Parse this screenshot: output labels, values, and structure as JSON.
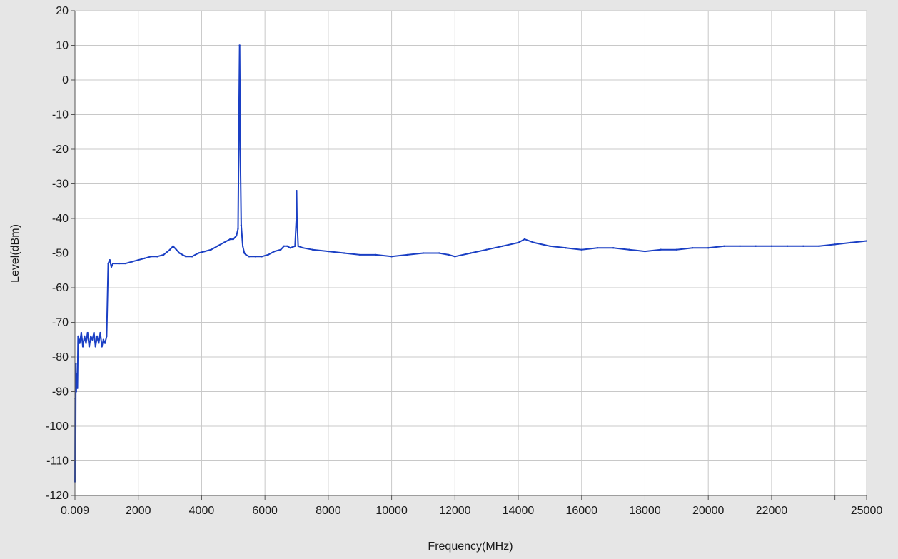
{
  "chart_data": {
    "type": "line",
    "xlabel": "Frequency(MHz)",
    "ylabel": "Level(dBm)",
    "xlim": [
      0,
      25000
    ],
    "ylim": [
      -120,
      20
    ],
    "x_ticks": [
      {
        "value": 0,
        "label": "0.009"
      },
      {
        "value": 2000,
        "label": "2000"
      },
      {
        "value": 4000,
        "label": "4000"
      },
      {
        "value": 6000,
        "label": "6000"
      },
      {
        "value": 8000,
        "label": "8000"
      },
      {
        "value": 10000,
        "label": "10000"
      },
      {
        "value": 12000,
        "label": "12000"
      },
      {
        "value": 14000,
        "label": "14000"
      },
      {
        "value": 16000,
        "label": "16000"
      },
      {
        "value": 18000,
        "label": "18000"
      },
      {
        "value": 20000,
        "label": "20000"
      },
      {
        "value": 22000,
        "label": "22000"
      },
      {
        "value": 25000,
        "label": "25000"
      }
    ],
    "x_grid": [
      0,
      2000,
      4000,
      6000,
      8000,
      10000,
      12000,
      14000,
      16000,
      18000,
      20000,
      22000,
      24000,
      25000
    ],
    "y_ticks": [
      20,
      10,
      0,
      -10,
      -20,
      -30,
      -40,
      -50,
      -60,
      -70,
      -80,
      -90,
      -100,
      -110,
      -120
    ],
    "grid": true,
    "colors": {
      "series": "#1a3fc4",
      "grid": "#c8c8c8",
      "plot_bg": "#ffffff",
      "page_bg": "#e6e6e6",
      "axis": "#555555"
    },
    "series": [
      {
        "x": [
          0,
          10,
          20,
          30,
          40,
          60,
          80,
          100,
          150,
          200,
          250,
          300,
          350,
          400,
          450,
          500,
          550,
          600,
          650,
          700,
          750,
          800,
          850,
          900,
          950,
          1000,
          1050,
          1100,
          1150,
          1200,
          1300,
          1400,
          1600,
          1800,
          2000,
          2200,
          2400,
          2600,
          2800,
          3000,
          3100,
          3200,
          3300,
          3400,
          3500,
          3700,
          3900,
          4100,
          4300,
          4500,
          4700,
          4900,
          5000,
          5100,
          5150,
          5180,
          5200,
          5220,
          5250,
          5300,
          5350,
          5400,
          5500,
          5700,
          5900,
          6100,
          6300,
          6500,
          6600,
          6700,
          6800,
          6950,
          6990,
          7000,
          7010,
          7050,
          7200,
          7500,
          8000,
          8500,
          9000,
          9500,
          10000,
          10500,
          11000,
          11500,
          11800,
          12000,
          12500,
          13000,
          13500,
          14000,
          14200,
          14500,
          15000,
          15500,
          16000,
          16500,
          17000,
          17500,
          18000,
          18500,
          19000,
          19500,
          20000,
          20500,
          21000,
          21500,
          22000,
          22500,
          23000,
          23500,
          24000,
          24500,
          25000
        ],
        "y": [
          -116,
          -92,
          -110,
          -82,
          -90,
          -85,
          -89,
          -74,
          -76,
          -73,
          -77,
          -74,
          -76,
          -73,
          -77,
          -74,
          -75,
          -73,
          -77,
          -74,
          -76,
          -73,
          -77,
          -75,
          -76,
          -74,
          -53,
          -52,
          -54,
          -53,
          -53,
          -53,
          -53,
          -52.5,
          -52,
          -51.5,
          -51,
          -51,
          -50.5,
          -49,
          -48,
          -49,
          -50,
          -50.5,
          -51,
          -51,
          -50,
          -49.5,
          -49,
          -48,
          -47,
          -46,
          -46,
          -45,
          -43,
          -10,
          10,
          -20,
          -42,
          -48,
          -50,
          -50.5,
          -51,
          -51,
          -51,
          -50.5,
          -49.5,
          -49,
          -48,
          -48,
          -48.5,
          -48,
          -40,
          -32,
          -40,
          -48,
          -48.5,
          -49,
          -49.5,
          -50,
          -50.5,
          -50.5,
          -51,
          -50.5,
          -50,
          -50,
          -50.5,
          -51,
          -50,
          -49,
          -48,
          -47,
          -46,
          -47,
          -48,
          -48.5,
          -49,
          -48.5,
          -48.5,
          -49,
          -49.5,
          -49,
          -49,
          -48.5,
          -48.5,
          -48,
          -48,
          -48,
          -48,
          -48,
          -48,
          -48,
          -47.5,
          -47,
          -46.5
        ]
      }
    ]
  }
}
